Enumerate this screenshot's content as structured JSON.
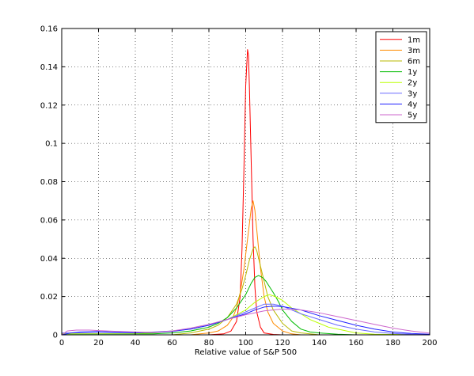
{
  "chart_data": {
    "type": "line",
    "xlabel": "Relative value of S&P 500",
    "ylabel": "",
    "title": "",
    "xlim": [
      0,
      200
    ],
    "ylim": [
      0,
      0.16
    ],
    "grid": true,
    "legend_position": "top-right",
    "x_ticks": [
      "0",
      "20",
      "40",
      "60",
      "80",
      "100",
      "120",
      "140",
      "160",
      "180",
      "200"
    ],
    "y_ticks": [
      "0",
      "0.02",
      "0.04",
      "0.06",
      "0.08",
      "0.1",
      "0.12",
      "0.14",
      "0.16"
    ],
    "series": [
      {
        "name": "1m",
        "color": "#ff0000",
        "x": [
          0,
          80,
          88,
          92,
          95,
          97,
          98,
          99,
          100,
          101,
          101.5,
          102,
          103,
          104,
          105,
          106,
          108,
          110,
          115,
          120,
          200
        ],
        "y": [
          0,
          0,
          0.0005,
          0.002,
          0.007,
          0.02,
          0.045,
          0.085,
          0.13,
          0.149,
          0.146,
          0.13,
          0.09,
          0.05,
          0.025,
          0.012,
          0.004,
          0.001,
          0.0002,
          0,
          0
        ]
      },
      {
        "name": "3m",
        "color": "#ff8c00",
        "x": [
          0,
          70,
          80,
          85,
          90,
          93,
          95,
          97,
          99,
          101,
          103,
          104,
          105,
          106,
          107,
          108,
          110,
          112,
          115,
          120,
          125,
          130,
          200
        ],
        "y": [
          0,
          0,
          0.001,
          0.002,
          0.005,
          0.009,
          0.014,
          0.022,
          0.034,
          0.05,
          0.066,
          0.07,
          0.065,
          0.055,
          0.045,
          0.035,
          0.02,
          0.012,
          0.006,
          0.002,
          0.0005,
          0,
          0
        ]
      },
      {
        "name": "6m",
        "color": "#b8b800",
        "x": [
          0,
          60,
          70,
          80,
          85,
          90,
          95,
          98,
          100,
          102,
          104,
          105,
          106,
          107,
          108,
          110,
          112,
          115,
          120,
          125,
          130,
          140,
          200
        ],
        "y": [
          0,
          0,
          0.001,
          0.003,
          0.005,
          0.009,
          0.016,
          0.024,
          0.031,
          0.039,
          0.045,
          0.046,
          0.044,
          0.04,
          0.036,
          0.028,
          0.02,
          0.013,
          0.006,
          0.002,
          0.001,
          0,
          0
        ]
      },
      {
        "name": "1y",
        "color": "#00bb00",
        "x": [
          0,
          50,
          60,
          70,
          80,
          85,
          90,
          95,
          100,
          103,
          105,
          107,
          109,
          111,
          113,
          115,
          118,
          120,
          125,
          130,
          135,
          140,
          150,
          160,
          200
        ],
        "y": [
          0.0005,
          0.0005,
          0.001,
          0.002,
          0.004,
          0.006,
          0.009,
          0.014,
          0.021,
          0.027,
          0.03,
          0.031,
          0.03,
          0.028,
          0.025,
          0.022,
          0.017,
          0.013,
          0.007,
          0.003,
          0.0015,
          0.001,
          0.0003,
          0,
          0
        ]
      },
      {
        "name": "2y",
        "color": "#bbff00",
        "x": [
          0,
          40,
          50,
          60,
          70,
          80,
          90,
          100,
          105,
          110,
          113,
          116,
          120,
          125,
          130,
          135,
          140,
          145,
          150,
          160,
          170,
          200
        ],
        "y": [
          0.0005,
          0.0007,
          0.001,
          0.002,
          0.003,
          0.005,
          0.008,
          0.013,
          0.017,
          0.02,
          0.021,
          0.02,
          0.018,
          0.014,
          0.011,
          0.008,
          0.006,
          0.004,
          0.003,
          0.001,
          0.0003,
          0
        ]
      },
      {
        "name": "3y",
        "color": "#6a6aff",
        "x": [
          0,
          20,
          40,
          50,
          60,
          70,
          80,
          90,
          100,
          105,
          110,
          115,
          120,
          125,
          130,
          140,
          150,
          160,
          170,
          180,
          190,
          200
        ],
        "y": [
          0.001,
          0.001,
          0.001,
          0.0015,
          0.002,
          0.003,
          0.005,
          0.008,
          0.012,
          0.014,
          0.016,
          0.016,
          0.015,
          0.013,
          0.011,
          0.008,
          0.005,
          0.003,
          0.0015,
          0.0007,
          0.0003,
          0.0002
        ]
      },
      {
        "name": "4y",
        "color": "#2020ff",
        "x": [
          0,
          5,
          10,
          20,
          30,
          40,
          50,
          60,
          70,
          80,
          90,
          100,
          105,
          110,
          115,
          120,
          130,
          140,
          150,
          160,
          170,
          180,
          190,
          200
        ],
        "y": [
          0,
          0.001,
          0.0015,
          0.0018,
          0.0015,
          0.0012,
          0.0012,
          0.0018,
          0.003,
          0.005,
          0.008,
          0.011,
          0.013,
          0.0145,
          0.015,
          0.0148,
          0.013,
          0.01,
          0.0075,
          0.005,
          0.003,
          0.0015,
          0.0007,
          0.0003
        ]
      },
      {
        "name": "5y",
        "color": "#cc66cc",
        "x": [
          0,
          3,
          8,
          15,
          20,
          30,
          40,
          50,
          60,
          70,
          80,
          90,
          100,
          110,
          120,
          130,
          140,
          150,
          160,
          170,
          180,
          190,
          200
        ],
        "y": [
          0,
          0.002,
          0.0025,
          0.0025,
          0.0022,
          0.0018,
          0.0015,
          0.0013,
          0.002,
          0.0035,
          0.0055,
          0.008,
          0.0105,
          0.0125,
          0.0135,
          0.013,
          0.0115,
          0.0095,
          0.0075,
          0.0055,
          0.0035,
          0.002,
          0.0009
        ]
      }
    ]
  }
}
